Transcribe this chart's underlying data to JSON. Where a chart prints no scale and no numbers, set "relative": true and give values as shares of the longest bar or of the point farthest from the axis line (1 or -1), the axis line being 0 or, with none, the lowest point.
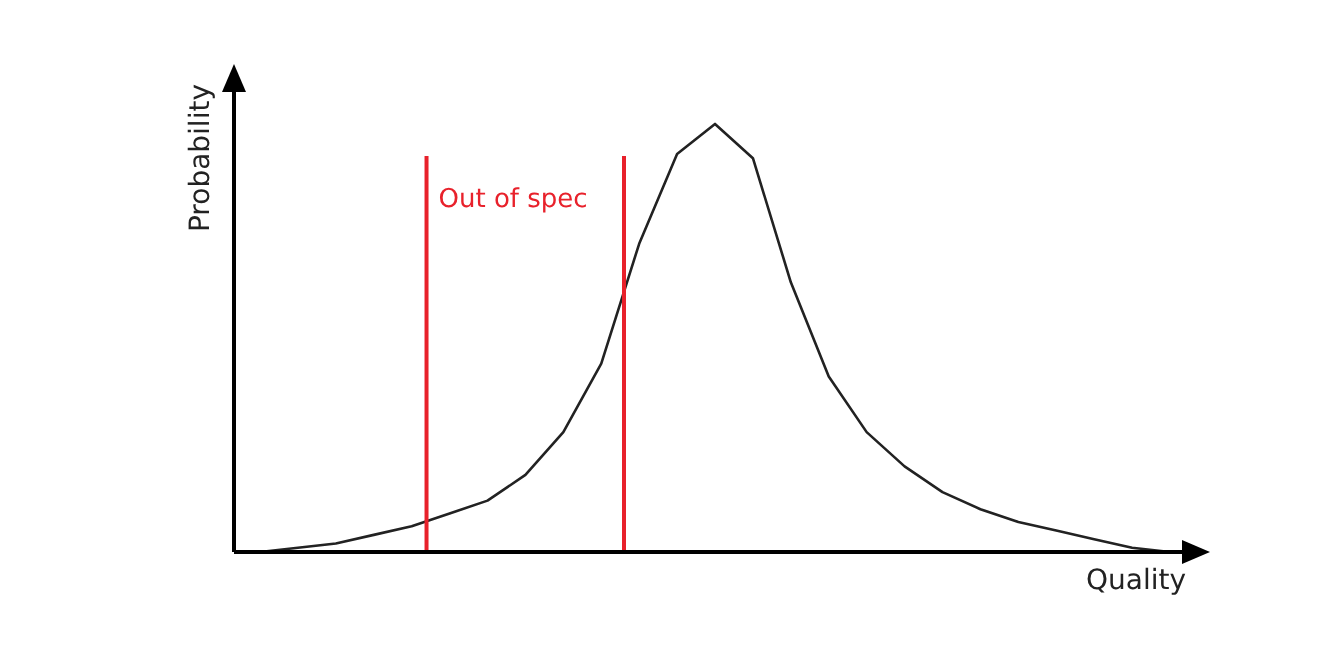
{
  "chart_data": {
    "type": "line",
    "relative": true,
    "xlabel": "Quality",
    "ylabel": "Probability",
    "legend": false,
    "marker": "none",
    "line_style": "solid",
    "categories": [
      null,
      null,
      null,
      null,
      null,
      null,
      null,
      null,
      null,
      null,
      null,
      null,
      null,
      null,
      null,
      null,
      null,
      null,
      null,
      null,
      null,
      null,
      null,
      null,
      null
    ],
    "series": [
      {
        "color": "#222222",
        "values": [
          0,
          0.01,
          0.02,
          0.04,
          0.06,
          0.09,
          0.12,
          0.18,
          0.28,
          0.44,
          0.72,
          0.93,
          1,
          0.92,
          0.63,
          0.41,
          0.28,
          0.2,
          0.14,
          0.1,
          0.07,
          0.05,
          0.03,
          0.01,
          0
        ]
      }
    ],
    "annotations": [
      "Out of spec"
    ]
  }
}
